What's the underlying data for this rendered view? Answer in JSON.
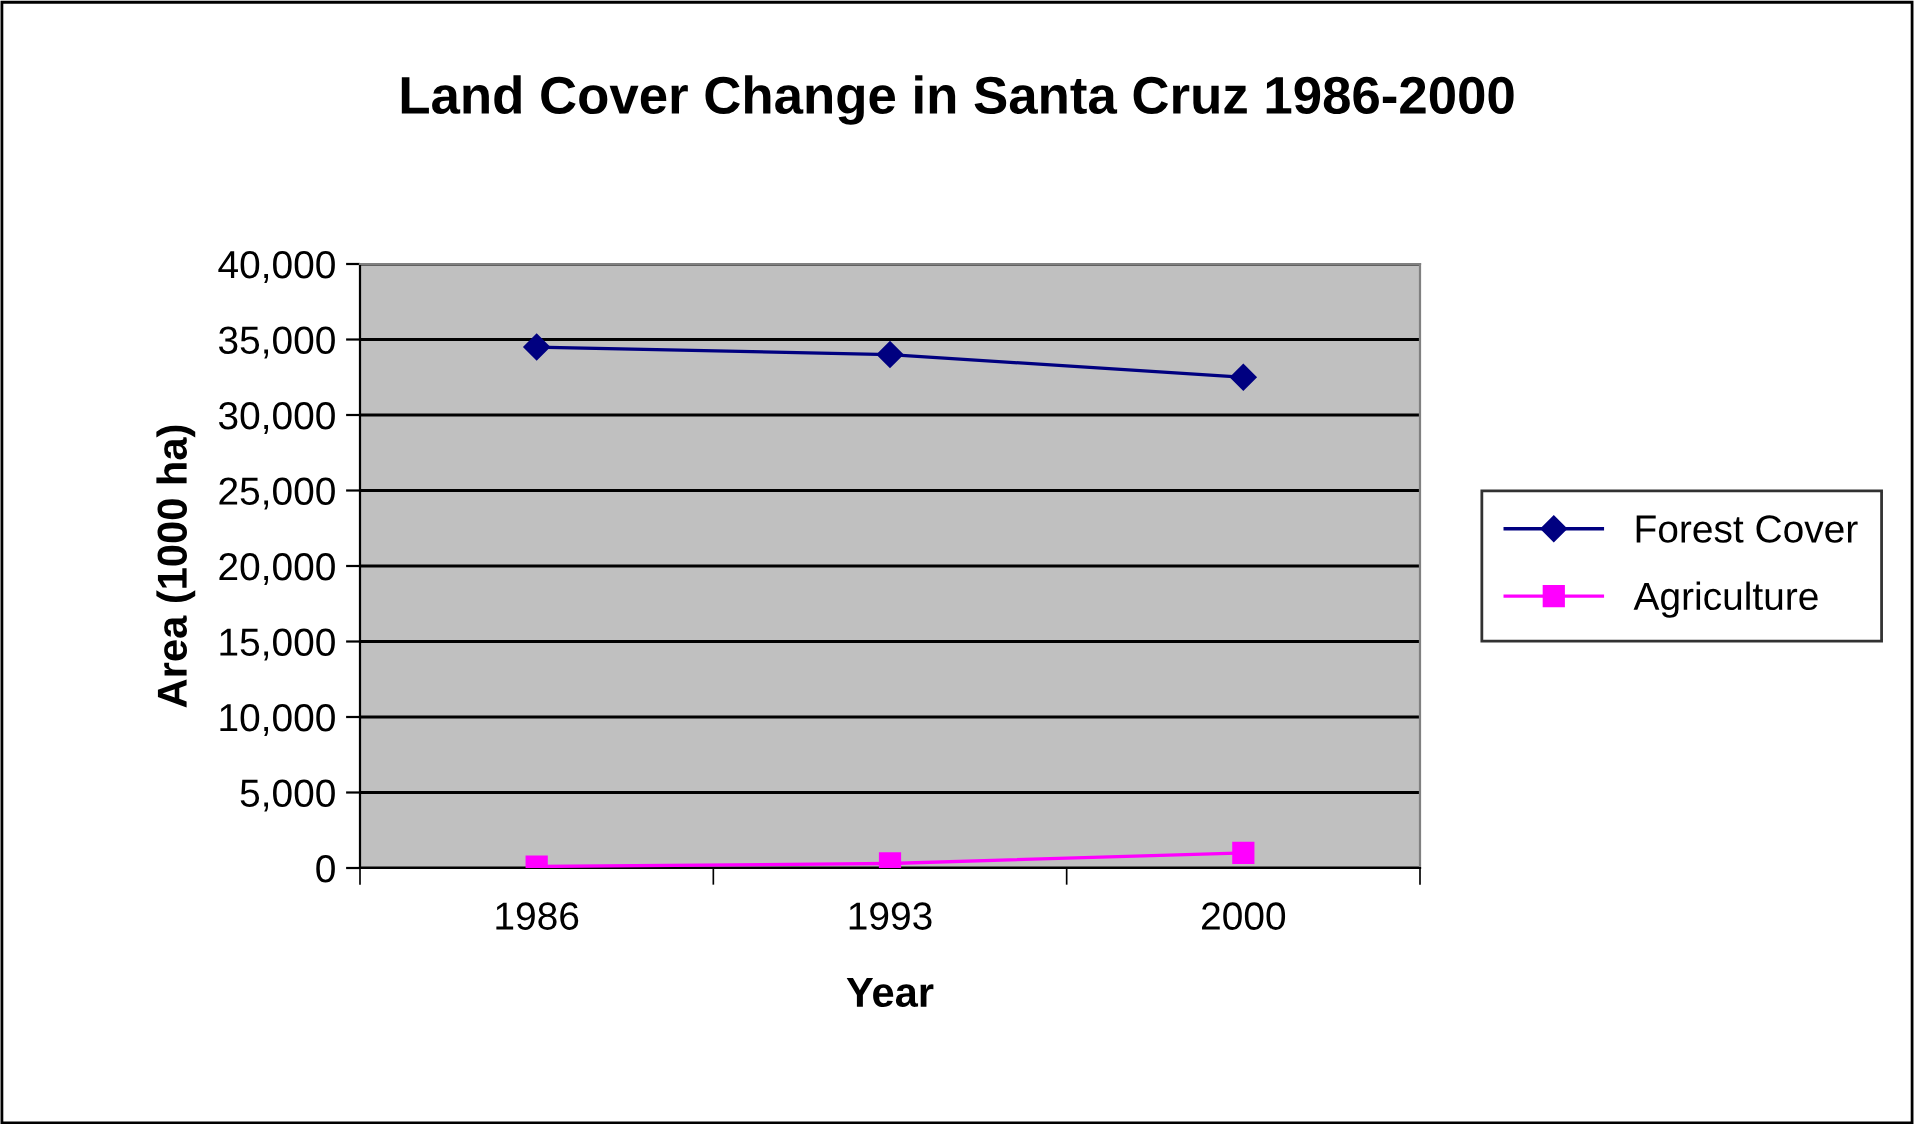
{
  "chart_data": {
    "type": "line",
    "title": "Land Cover Change in Santa Cruz 1986-2000",
    "xlabel": "Year",
    "ylabel": "Area (1000 ha)",
    "categories": [
      "1986",
      "1993",
      "2000"
    ],
    "series": [
      {
        "name": "Forest Cover",
        "color": "#000080",
        "values": [
          34500,
          34000,
          32500
        ],
        "marker": "diamond"
      },
      {
        "name": "Agriculture",
        "color": "#ff00ff",
        "values": [
          100,
          300,
          1000
        ],
        "marker": "square"
      }
    ],
    "ylim": [
      0,
      40000
    ],
    "yticks": [
      0,
      {
        "value": 5000,
        "label": "5,000"
      },
      {
        "value": 10000,
        "label": "10,000"
      },
      {
        "value": 15000,
        "label": "15,000"
      },
      {
        "value": 20000,
        "label": "20,000"
      },
      {
        "value": 25000,
        "label": "25,000"
      },
      {
        "value": 30000,
        "label": "30,000"
      },
      {
        "value": 35000,
        "label": "35,000"
      },
      {
        "value": 40000,
        "label": "40,000"
      }
    ],
    "grid": "y",
    "legend": "right",
    "line_style": "solid"
  }
}
